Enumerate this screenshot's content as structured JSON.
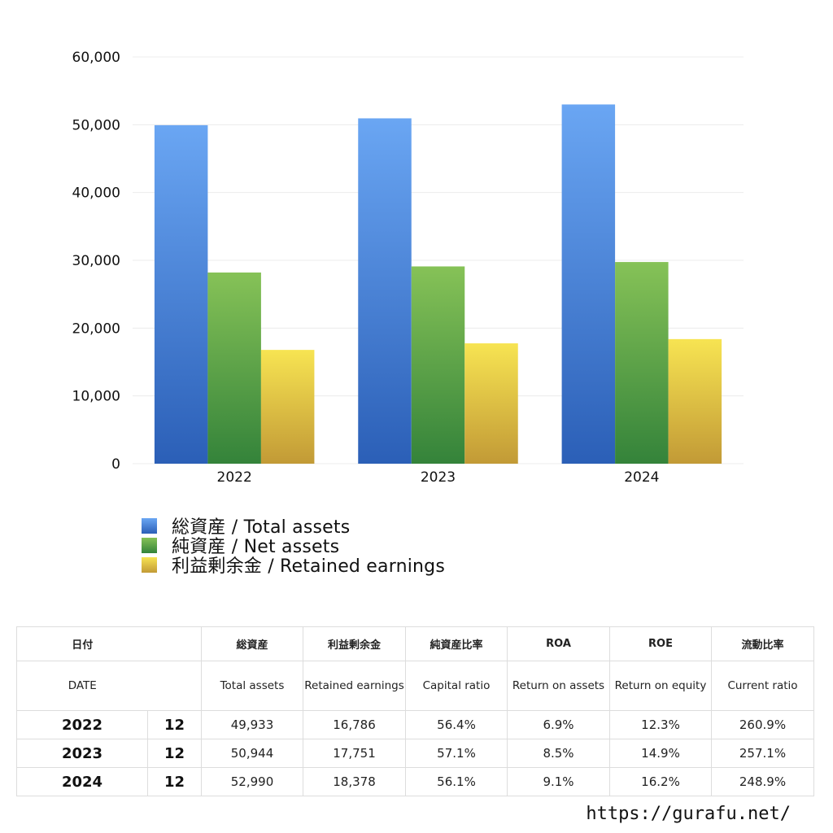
{
  "chart_data": {
    "type": "bar",
    "categories": [
      "2022",
      "2023",
      "2024"
    ],
    "series": [
      {
        "name": "総資産 / Total assets",
        "values": [
          49933,
          50944,
          52990
        ],
        "color_top": "#6aa6f3",
        "color_bottom": "#2b5fb7"
      },
      {
        "name": "純資産 / Net assets",
        "values": [
          28200,
          29100,
          29750
        ],
        "color_top": "#86c257",
        "color_bottom": "#34833a"
      },
      {
        "name": "利益剰余金 / Retained earnings",
        "values": [
          16786,
          17751,
          18378
        ],
        "color_top": "#f7e452",
        "color_bottom": "#c29a36"
      }
    ],
    "ylim": [
      0,
      60000
    ],
    "yticks": [
      0,
      10000,
      20000,
      30000,
      40000,
      50000,
      60000
    ],
    "ytick_labels": [
      "0",
      "10,000",
      "20,000",
      "30,000",
      "40,000",
      "50,000",
      "60,000"
    ],
    "grid": true,
    "legend_position": "bottom-left"
  },
  "table": {
    "headers_jp": [
      "日付",
      "総資産",
      "利益剰余金",
      "純資産比率",
      "ROA",
      "ROE",
      "流動比率"
    ],
    "headers_en": [
      "DATE",
      "Total assets",
      "Retained earnings",
      "Capital ratio",
      "Return on assets",
      "Return on equity",
      "Current ratio"
    ],
    "rows": [
      {
        "year": "2022",
        "month": "12",
        "total_assets": "49,933",
        "retained_earnings": "16,786",
        "capital_ratio": "56.4%",
        "roa": "6.9%",
        "roe": "12.3%",
        "current_ratio": "260.9%"
      },
      {
        "year": "2023",
        "month": "12",
        "total_assets": "50,944",
        "retained_earnings": "17,751",
        "capital_ratio": "57.1%",
        "roa": "8.5%",
        "roe": "14.9%",
        "current_ratio": "257.1%"
      },
      {
        "year": "2024",
        "month": "12",
        "total_assets": "52,990",
        "retained_earnings": "18,378",
        "capital_ratio": "56.1%",
        "roa": "9.1%",
        "roe": "16.2%",
        "current_ratio": "248.9%"
      }
    ]
  },
  "footer": {
    "url": "https://gurafu.net/"
  }
}
